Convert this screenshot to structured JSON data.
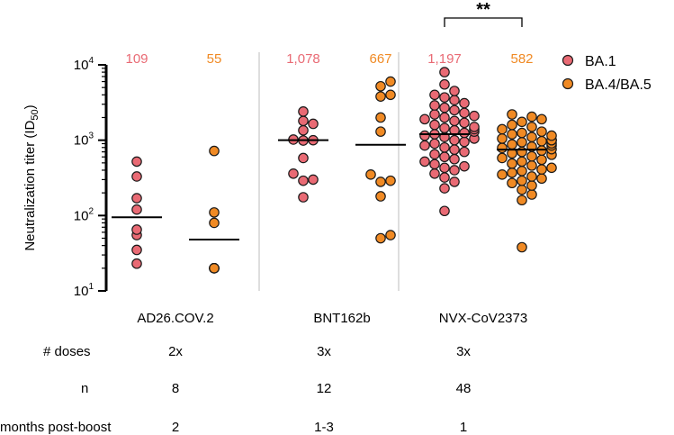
{
  "chart_data": {
    "type": "scatter",
    "ylabel": "Neutralization titer (ID",
    "ylabel_sub": "50",
    "ylabel_close": ")",
    "y_scale": "log",
    "ylim": [
      10,
      10000
    ],
    "y_ticks": [
      {
        "value": 10,
        "base": "10",
        "exp": "1"
      },
      {
        "value": 100,
        "base": "10",
        "exp": "2"
      },
      {
        "value": 1000,
        "base": "10",
        "exp": "3"
      },
      {
        "value": 10000,
        "base": "10",
        "exp": "4"
      }
    ],
    "groups": [
      {
        "name": "AD26.COV.2",
        "doses": "2x",
        "n": "8",
        "months": "2",
        "series": [
          {
            "name": "BA.1",
            "gmt_label": "109",
            "median": 95,
            "points": [
              23,
              35,
              55,
              65,
              120,
              170,
              330,
              520
            ]
          },
          {
            "name": "BA.4/BA.5",
            "gmt_label": "55",
            "median": 48,
            "points": [
              20,
              20,
              20,
              20,
              20,
              80,
              110,
              720
            ]
          }
        ]
      },
      {
        "name": "BNT162b",
        "doses": "3x",
        "n": "12",
        "months": "1-3",
        "series": [
          {
            "name": "BA.1",
            "gmt_label": "1,078",
            "median": 1000,
            "points": [
              175,
              290,
              300,
              360,
              580,
              990,
              1000,
              1020,
              1350,
              1650,
              1800,
              2400
            ]
          },
          {
            "name": "BA.4/BA.5",
            "gmt_label": "667",
            "median": 870,
            "points": [
              50,
              55,
              180,
              280,
              290,
              350,
              1300,
              2000,
              3800,
              4000,
              5200,
              6000
            ]
          }
        ]
      },
      {
        "name": "NVX-CoV2373",
        "doses": "3x",
        "n": "48",
        "months": "1",
        "series": [
          {
            "name": "BA.1",
            "gmt_label": "1,197",
            "median": 1200,
            "points": [
              115,
              230,
              280,
              320,
              360,
              400,
              430,
              450,
              480,
              520,
              560,
              600,
              650,
              700,
              750,
              800,
              850,
              900,
              950,
              1000,
              1050,
              1100,
              1150,
              1200,
              1250,
              1300,
              1350,
              1400,
              1450,
              1500,
              1600,
              1700,
              1800,
              1900,
              2000,
              2100,
              2200,
              2300,
              2500,
              2700,
              2900,
              3100,
              3400,
              3700,
              4000,
              4500,
              5500,
              8000
            ]
          },
          {
            "name": "BA.4/BA.5",
            "gmt_label": "582",
            "median": 750,
            "points": [
              38,
              160,
              190,
              220,
              250,
              270,
              290,
              310,
              330,
              350,
              370,
              390,
              410,
              430,
              460,
              490,
              520,
              550,
              580,
              610,
              640,
              670,
              700,
              730,
              760,
              790,
              820,
              850,
              880,
              910,
              940,
              970,
              1000,
              1000,
              1000,
              1050,
              1100,
              1150,
              1200,
              1250,
              1300,
              1400,
              1500,
              1600,
              1750,
              1900,
              2050,
              2200
            ]
          }
        ]
      }
    ],
    "legend": [
      {
        "name": "BA.1",
        "color": "#e96a74"
      },
      {
        "name": "BA.4/BA.5",
        "color": "#f08a24"
      }
    ],
    "series_colors": {
      "BA.1": "#e96a74",
      "BA.4/BA.5": "#f08a24"
    },
    "significance": "**",
    "table_row_labels": {
      "doses": "# doses",
      "n": "n",
      "months": "months post-boost"
    }
  }
}
